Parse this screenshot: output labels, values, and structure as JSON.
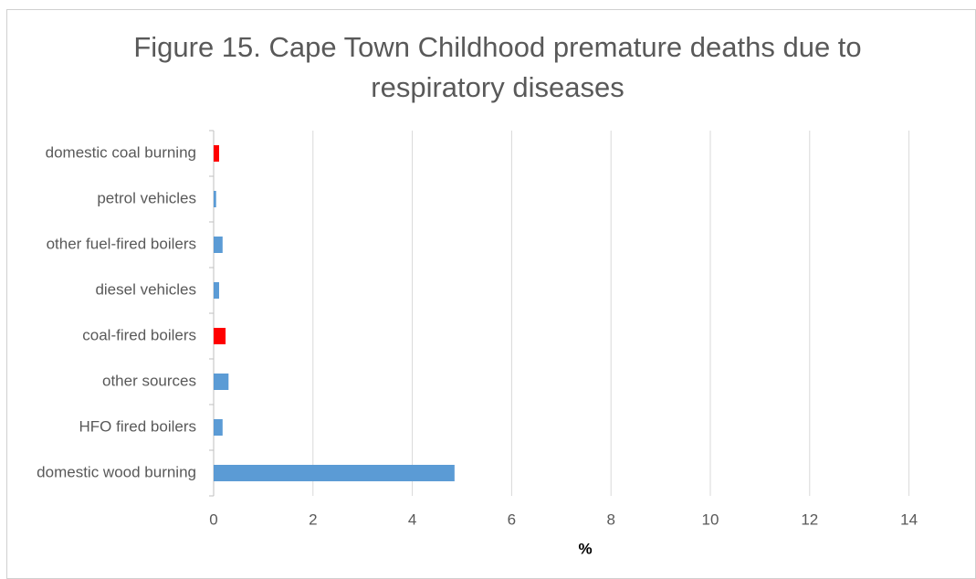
{
  "chart_data": {
    "type": "hbar",
    "title": "Figure 15. Cape Town Childhood premature deaths due to respiratory diseases",
    "x_label": "%",
    "categories": [
      "domestic coal burning",
      "petrol vehicles",
      "other fuel-fired boilers",
      "diesel vehicles",
      "coal-fired boilers",
      "other sources",
      "HFO fired boilers",
      "domestic wood burning"
    ],
    "values": [
      0.11,
      0.05,
      0.18,
      0.11,
      0.24,
      0.3,
      0.18,
      4.85
    ],
    "colors": [
      "#ff0000",
      "#5b9bd5",
      "#5b9bd5",
      "#5b9bd5",
      "#ff0000",
      "#5b9bd5",
      "#5b9bd5",
      "#5b9bd5"
    ],
    "xlim": [
      0,
      15
    ],
    "xticks": [
      0,
      2,
      4,
      6,
      8,
      10,
      12,
      14
    ],
    "grid": true
  }
}
